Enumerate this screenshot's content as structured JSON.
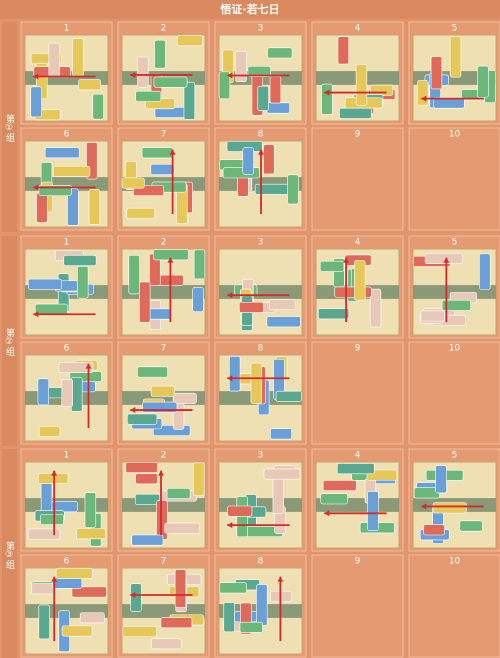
{
  "header": {
    "title": "悟证·若七日"
  },
  "groups": [
    {
      "label": "第①组",
      "cells": [
        1,
        2,
        3,
        4,
        5,
        6,
        7,
        8,
        9,
        10
      ]
    },
    {
      "label": "第②组",
      "cells": [
        1,
        2,
        3,
        4,
        5,
        6,
        7,
        8,
        9,
        10
      ]
    },
    {
      "label": "第③组",
      "cells": [
        1,
        2,
        3,
        4,
        5,
        6,
        7,
        8,
        9,
        10
      ]
    }
  ]
}
